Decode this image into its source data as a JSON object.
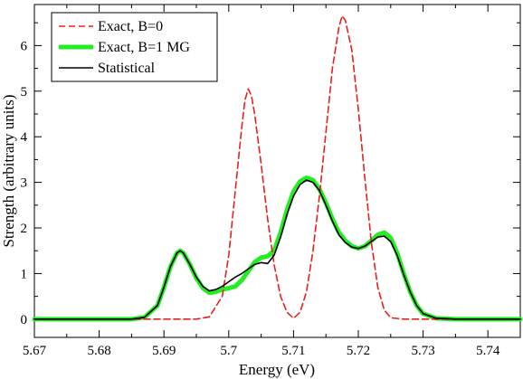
{
  "chart_data": {
    "type": "line",
    "xlabel": "Energy (eV)",
    "ylabel": "Strength (arbitrary units)",
    "xlim": [
      5.67,
      5.745
    ],
    "ylim": [
      -0.4,
      6.9
    ],
    "xticks": [
      "5.67",
      "5.68",
      "5.69",
      "5.7",
      "5.71",
      "5.72",
      "5.73",
      "5.74"
    ],
    "yticks": [
      "0",
      "1",
      "2",
      "3",
      "4",
      "5",
      "6"
    ],
    "xtick_values": [
      5.67,
      5.68,
      5.69,
      5.7,
      5.71,
      5.72,
      5.73,
      5.74
    ],
    "ytick_values": [
      0,
      1,
      2,
      3,
      4,
      5,
      6
    ],
    "legend_position": "top-left",
    "grid": false,
    "series": [
      {
        "name": "Exact, B=0",
        "color": "#e8201c",
        "style": "dashed",
        "points": [
          [
            5.67,
            0
          ],
          [
            5.695,
            0
          ],
          [
            5.697,
            0.05
          ],
          [
            5.699,
            0.5
          ],
          [
            5.7,
            1.4
          ],
          [
            5.701,
            2.8
          ],
          [
            5.702,
            4.2
          ],
          [
            5.7025,
            4.8
          ],
          [
            5.703,
            5.05
          ],
          [
            5.7035,
            4.9
          ],
          [
            5.704,
            4.5
          ],
          [
            5.705,
            3.4
          ],
          [
            5.706,
            2.2
          ],
          [
            5.707,
            1.2
          ],
          [
            5.708,
            0.5
          ],
          [
            5.709,
            0.15
          ],
          [
            5.71,
            0.02
          ],
          [
            5.711,
            0.15
          ],
          [
            5.712,
            0.6
          ],
          [
            5.713,
            1.5
          ],
          [
            5.714,
            2.7
          ],
          [
            5.715,
            4.1
          ],
          [
            5.716,
            5.5
          ],
          [
            5.717,
            6.4
          ],
          [
            5.7175,
            6.65
          ],
          [
            5.718,
            6.55
          ],
          [
            5.719,
            5.9
          ],
          [
            5.72,
            4.6
          ],
          [
            5.721,
            3.1
          ],
          [
            5.722,
            1.7
          ],
          [
            5.723,
            0.7
          ],
          [
            5.724,
            0.2
          ],
          [
            5.725,
            0.03
          ],
          [
            5.727,
            0
          ],
          [
            5.745,
            0
          ]
        ]
      },
      {
        "name": "Exact, B=1 MG",
        "color": "#22ee22",
        "style": "solid-thick",
        "points": [
          [
            5.67,
            0
          ],
          [
            5.685,
            0
          ],
          [
            5.687,
            0.04
          ],
          [
            5.689,
            0.3
          ],
          [
            5.69,
            0.7
          ],
          [
            5.691,
            1.15
          ],
          [
            5.692,
            1.45
          ],
          [
            5.6925,
            1.5
          ],
          [
            5.693,
            1.45
          ],
          [
            5.694,
            1.2
          ],
          [
            5.695,
            0.9
          ],
          [
            5.696,
            0.68
          ],
          [
            5.697,
            0.58
          ],
          [
            5.698,
            0.6
          ],
          [
            5.699,
            0.65
          ],
          [
            5.7,
            0.68
          ],
          [
            5.701,
            0.72
          ],
          [
            5.702,
            0.85
          ],
          [
            5.703,
            1.05
          ],
          [
            5.704,
            1.25
          ],
          [
            5.705,
            1.35
          ],
          [
            5.706,
            1.38
          ],
          [
            5.707,
            1.5
          ],
          [
            5.708,
            1.9
          ],
          [
            5.709,
            2.4
          ],
          [
            5.71,
            2.8
          ],
          [
            5.711,
            3.02
          ],
          [
            5.712,
            3.1
          ],
          [
            5.713,
            3.05
          ],
          [
            5.714,
            2.85
          ],
          [
            5.715,
            2.55
          ],
          [
            5.716,
            2.2
          ],
          [
            5.717,
            1.9
          ],
          [
            5.718,
            1.72
          ],
          [
            5.719,
            1.6
          ],
          [
            5.72,
            1.55
          ],
          [
            5.721,
            1.6
          ],
          [
            5.722,
            1.72
          ],
          [
            5.723,
            1.85
          ],
          [
            5.724,
            1.9
          ],
          [
            5.725,
            1.78
          ],
          [
            5.726,
            1.45
          ],
          [
            5.727,
            1.0
          ],
          [
            5.728,
            0.6
          ],
          [
            5.729,
            0.3
          ],
          [
            5.73,
            0.12
          ],
          [
            5.732,
            0.02
          ],
          [
            5.735,
            0
          ],
          [
            5.745,
            0
          ]
        ]
      },
      {
        "name": "Statistical",
        "color": "#000000",
        "style": "solid",
        "points": [
          [
            5.67,
            0
          ],
          [
            5.685,
            0
          ],
          [
            5.687,
            0.04
          ],
          [
            5.689,
            0.3
          ],
          [
            5.69,
            0.7
          ],
          [
            5.691,
            1.15
          ],
          [
            5.692,
            1.45
          ],
          [
            5.6925,
            1.5
          ],
          [
            5.693,
            1.45
          ],
          [
            5.694,
            1.2
          ],
          [
            5.695,
            0.92
          ],
          [
            5.696,
            0.72
          ],
          [
            5.697,
            0.62
          ],
          [
            5.698,
            0.65
          ],
          [
            5.699,
            0.72
          ],
          [
            5.7,
            0.82
          ],
          [
            5.701,
            0.92
          ],
          [
            5.702,
            1.0
          ],
          [
            5.703,
            1.1
          ],
          [
            5.704,
            1.2
          ],
          [
            5.705,
            1.24
          ],
          [
            5.706,
            1.22
          ],
          [
            5.707,
            1.4
          ],
          [
            5.708,
            1.8
          ],
          [
            5.709,
            2.3
          ],
          [
            5.71,
            2.7
          ],
          [
            5.711,
            2.95
          ],
          [
            5.712,
            3.05
          ],
          [
            5.713,
            3.0
          ],
          [
            5.714,
            2.82
          ],
          [
            5.715,
            2.5
          ],
          [
            5.716,
            2.15
          ],
          [
            5.717,
            1.85
          ],
          [
            5.718,
            1.68
          ],
          [
            5.719,
            1.58
          ],
          [
            5.72,
            1.55
          ],
          [
            5.721,
            1.6
          ],
          [
            5.722,
            1.7
          ],
          [
            5.723,
            1.8
          ],
          [
            5.724,
            1.82
          ],
          [
            5.725,
            1.7
          ],
          [
            5.726,
            1.4
          ],
          [
            5.727,
            0.98
          ],
          [
            5.728,
            0.6
          ],
          [
            5.729,
            0.3
          ],
          [
            5.73,
            0.12
          ],
          [
            5.732,
            0.02
          ],
          [
            5.735,
            0
          ],
          [
            5.745,
            0
          ]
        ]
      }
    ]
  }
}
